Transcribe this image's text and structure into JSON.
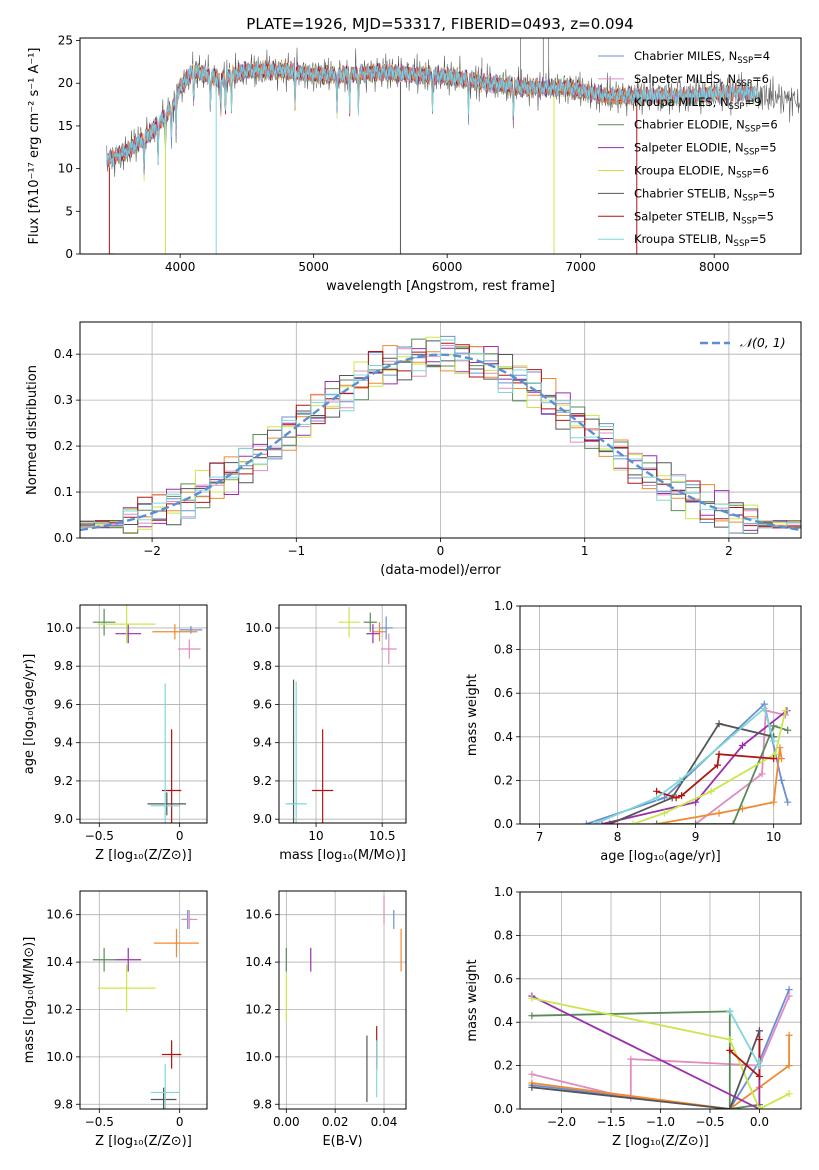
{
  "figure": {
    "title": "PLATE=1926, MJD=53317, FIBERID=0493, z=0.094"
  },
  "model_colors": [
    "#6b8ed6",
    "#e08cc0",
    "#f08a30",
    "#5a8a5a",
    "#9a2fae",
    "#c8e84a",
    "#555555",
    "#b01515",
    "#7fd8d8"
  ],
  "chart_data": [
    {
      "id": "spectrum",
      "type": "line",
      "title": "PLATE=1926, MJD=53317, FIBERID=0493, z=0.094",
      "xlabel": "wavelength [Angstrom, rest frame]",
      "ylabel": "Flux [fλ10⁻¹⁷ erg cm⁻² s⁻¹ A⁻¹]",
      "xlim": [
        3250,
        8650
      ],
      "ylim": [
        0,
        25.3
      ],
      "xticks": [
        4000,
        5000,
        6000,
        7000,
        8000
      ],
      "yticks": [
        0,
        5,
        10,
        15,
        20,
        25
      ],
      "grid": false,
      "legend": "top-right",
      "legend_entries": [
        {
          "pre": "Chabrier MILES, N",
          "sub": "SSP",
          "post": "=4"
        },
        {
          "pre": "Salpeter MILES, N",
          "sub": "SSP",
          "post": "=6"
        },
        {
          "pre": "Kroupa MILES, N",
          "sub": "SSP",
          "post": "=9"
        },
        {
          "pre": "Chabrier ELODIE, N",
          "sub": "SSP",
          "post": "=6"
        },
        {
          "pre": "Salpeter ELODIE, N",
          "sub": "SSP",
          "post": "=5"
        },
        {
          "pre": "Kroupa ELODIE, N",
          "sub": "SSP",
          "post": "=6"
        },
        {
          "pre": "Chabrier STELIB, N",
          "sub": "SSP",
          "post": "=5"
        },
        {
          "pre": "Salpeter STELIB, N",
          "sub": "SSP",
          "post": "=5"
        },
        {
          "pre": "Kroupa STELIB, N",
          "sub": "SSP",
          "post": "=5"
        }
      ],
      "continuum": [
        [
          3450,
          11.0
        ],
        [
          3600,
          12.0
        ],
        [
          3800,
          14.5
        ],
        [
          3950,
          17.5
        ],
        [
          4000,
          19.5
        ],
        [
          4100,
          21.5
        ],
        [
          4300,
          20.5
        ],
        [
          4500,
          21.5
        ],
        [
          4800,
          21.5
        ],
        [
          5000,
          21.0
        ],
        [
          5200,
          21.0
        ],
        [
          5500,
          21.3
        ],
        [
          5800,
          21.0
        ],
        [
          6000,
          20.8
        ],
        [
          6300,
          20.0
        ],
        [
          6600,
          19.5
        ],
        [
          6900,
          19.5
        ],
        [
          7200,
          18.5
        ],
        [
          7500,
          18.5
        ],
        [
          7800,
          18.5
        ],
        [
          8200,
          19.0
        ],
        [
          8600,
          18.0
        ]
      ],
      "drops": [
        [
          3470,
          0
        ],
        [
          3890,
          0
        ],
        [
          4270,
          0
        ],
        [
          5650,
          0
        ],
        [
          6800,
          0
        ],
        [
          7420,
          0
        ]
      ],
      "spikes": [
        [
          5870,
          21.5
        ],
        [
          6050,
          21.5
        ],
        [
          6260,
          23.0
        ],
        [
          6550,
          25.3
        ],
        [
          6720,
          25.3
        ],
        [
          6760,
          25.3
        ]
      ]
    },
    {
      "id": "residuals",
      "type": "step",
      "xlabel": "(data-model)/error",
      "ylabel": "Normed distribution",
      "xlim": [
        -2.5,
        2.5
      ],
      "ylim": [
        0,
        0.47
      ],
      "xticks": [
        -2,
        -1,
        0,
        1,
        2
      ],
      "yticks": [
        0.0,
        0.1,
        0.2,
        0.3,
        0.4
      ],
      "grid": true,
      "legend": "top-right",
      "reference": {
        "name": "𝒩(0, 1)",
        "mean": 0,
        "sigma": 1
      },
      "bin_start": -2.5,
      "bin_width": 0.1,
      "n_bins": 50
    },
    {
      "id": "age-Z",
      "type": "scatter",
      "xlabel": "Z [log₁₀(Z/Z⊙)]",
      "ylabel": "age  [log₁₀(age/yr)]",
      "xlim": [
        -0.62,
        0.17
      ],
      "ylim": [
        8.98,
        10.12
      ],
      "xticks": [
        -0.5,
        0.0
      ],
      "yticks": [
        9.0,
        9.2,
        9.4,
        9.6,
        9.8,
        10.0
      ],
      "grid": true,
      "points": [
        {
          "m": 0,
          "x": 0.07,
          "xe": 0.07,
          "y": 9.99,
          "ye": 0.02
        },
        {
          "m": 1,
          "x": 0.06,
          "xe": 0.07,
          "y": 9.89,
          "ye": 0.05
        },
        {
          "m": 2,
          "x": -0.03,
          "xe": 0.14,
          "y": 9.98,
          "ye": 0.04
        },
        {
          "m": 3,
          "x": -0.47,
          "xe": 0.07,
          "y": 10.03,
          "ye": 0.07
        },
        {
          "m": 4,
          "x": -0.32,
          "xe": 0.08,
          "y": 9.97,
          "ye": 0.05
        },
        {
          "m": 5,
          "x": -0.33,
          "xe": 0.18,
          "y": 10.02,
          "ye": 0.1
        },
        {
          "m": 6,
          "x": -0.08,
          "xe": 0.12,
          "y": 9.08,
          "ye": 0.06
        },
        {
          "m": 7,
          "x": -0.05,
          "xe": 0.06,
          "y": 9.15,
          "ye": 0.32
        },
        {
          "m": 8,
          "x": -0.09,
          "xe": 0.09,
          "y": 9.07,
          "ye": 0.64
        }
      ]
    },
    {
      "id": "age-mass",
      "type": "scatter",
      "xlabel": "mass [log₁₀(M/M⊙)]",
      "ylabel": "",
      "xlim": [
        9.72,
        10.68
      ],
      "ylim": [
        8.98,
        10.12
      ],
      "xticks": [
        10.0,
        10.5
      ],
      "yticks": [
        9.0,
        9.2,
        9.4,
        9.6,
        9.8,
        10.0
      ],
      "grid": true,
      "points": [
        {
          "m": 0,
          "x": 10.53,
          "xe": 0.05,
          "y": 10.0,
          "ye": 0.06
        },
        {
          "m": 1,
          "x": 10.55,
          "xe": 0.06,
          "y": 9.89,
          "ye": 0.08
        },
        {
          "m": 2,
          "x": 10.48,
          "xe": 0.05,
          "y": 9.98,
          "ye": 0.05
        },
        {
          "m": 3,
          "x": 10.41,
          "xe": 0.05,
          "y": 10.03,
          "ye": 0.05
        },
        {
          "m": 4,
          "x": 10.43,
          "xe": 0.05,
          "y": 9.97,
          "ye": 0.05
        },
        {
          "m": 5,
          "x": 10.25,
          "xe": 0.08,
          "y": 10.03,
          "ye": 0.08
        },
        {
          "m": 6,
          "x": 9.83,
          "xe": 0.03,
          "y": 9.08,
          "ye": 0.65
        },
        {
          "m": 7,
          "x": 10.05,
          "xe": 0.08,
          "y": 9.15,
          "ye": 0.32
        },
        {
          "m": 8,
          "x": 9.85,
          "xe": 0.08,
          "y": 9.08,
          "ye": 0.64
        }
      ]
    },
    {
      "id": "weight-age",
      "type": "line",
      "xlabel": "age  [log₁₀(age/yr)]",
      "ylabel": "mass weight",
      "xlim": [
        6.75,
        10.35
      ],
      "ylim": [
        0,
        1
      ],
      "xticks": [
        7,
        8,
        9,
        10
      ],
      "yticks": [
        0.0,
        0.2,
        0.4,
        0.6,
        0.8,
        1.0
      ],
      "grid": true,
      "series": [
        {
          "m": 0,
          "x": [
            7.6,
            8.6,
            9.88,
            10.1,
            10.18
          ],
          "y": [
            0.0,
            0.12,
            0.55,
            0.2,
            0.1
          ]
        },
        {
          "m": 1,
          "x": [
            8.0,
            9.0,
            9.85,
            9.9,
            10.15
          ],
          "y": [
            0.0,
            0.0,
            0.23,
            0.52,
            0.5
          ]
        },
        {
          "m": 2,
          "x": [
            8.5,
            9.3,
            9.6,
            10.0,
            10.08,
            10.1
          ],
          "y": [
            0.0,
            0.05,
            0.07,
            0.1,
            0.35,
            0.3
          ]
        },
        {
          "m": 3,
          "x": [
            8.5,
            9.0,
            9.48,
            10.0,
            10.18
          ],
          "y": [
            0.0,
            0.0,
            0.0,
            0.45,
            0.43
          ]
        },
        {
          "m": 4,
          "x": [
            7.8,
            9.0,
            9.6,
            10.17
          ],
          "y": [
            0.0,
            0.1,
            0.36,
            0.52
          ]
        },
        {
          "m": 5,
          "x": [
            8.2,
            8.6,
            9.2,
            10.02,
            10.15
          ],
          "y": [
            0.0,
            0.05,
            0.15,
            0.32,
            0.52
          ]
        },
        {
          "m": 6,
          "x": [
            7.9,
            8.7,
            9.3,
            10.0
          ],
          "y": [
            0.0,
            0.12,
            0.46,
            0.4
          ]
        },
        {
          "m": 7,
          "x": [
            8.5,
            8.75,
            8.82,
            9.28,
            9.3,
            10.0
          ],
          "y": [
            0.15,
            0.12,
            0.13,
            0.27,
            0.32,
            0.3
          ]
        },
        {
          "m": 8,
          "x": [
            7.7,
            8.5,
            8.8,
            9.88,
            10.0
          ],
          "y": [
            0.0,
            0.12,
            0.2,
            0.53,
            0.38
          ]
        }
      ]
    },
    {
      "id": "mass-Z",
      "type": "scatter",
      "xlabel": "Z [log₁₀(Z/Z⊙)]",
      "ylabel": "mass [log₁₀(M/M⊙)]",
      "xlim": [
        -0.62,
        0.17
      ],
      "ylim": [
        9.78,
        10.7
      ],
      "xticks": [
        -0.5,
        0.0
      ],
      "yticks": [
        9.8,
        10.0,
        10.2,
        10.4,
        10.6
      ],
      "grid": true,
      "points": [
        {
          "m": 0,
          "x": 0.05,
          "xe": 0.03,
          "y": 10.58,
          "ye": 0.04
        },
        {
          "m": 1,
          "x": 0.06,
          "xe": 0.05,
          "y": 10.58,
          "ye": 0.04
        },
        {
          "m": 2,
          "x": -0.02,
          "xe": 0.14,
          "y": 10.48,
          "ye": 0.06
        },
        {
          "m": 3,
          "x": -0.47,
          "xe": 0.07,
          "y": 10.41,
          "ye": 0.05
        },
        {
          "m": 4,
          "x": -0.32,
          "xe": 0.08,
          "y": 10.41,
          "ye": 0.05
        },
        {
          "m": 5,
          "x": -0.33,
          "xe": 0.18,
          "y": 10.29,
          "ye": 0.1
        },
        {
          "m": 6,
          "x": -0.1,
          "xe": 0.08,
          "y": 9.82,
          "ye": 0.05
        },
        {
          "m": 7,
          "x": -0.05,
          "xe": 0.06,
          "y": 10.01,
          "ye": 0.06
        },
        {
          "m": 8,
          "x": -0.09,
          "xe": 0.09,
          "y": 9.85,
          "ye": 0.12
        }
      ]
    },
    {
      "id": "mass-EBV",
      "type": "scatter",
      "xlabel": "E(B-V)",
      "ylabel": "",
      "xlim": [
        -0.003,
        0.049
      ],
      "ylim": [
        9.78,
        10.7
      ],
      "xticks": [
        0.0,
        0.02,
        0.04
      ],
      "yticks": [
        9.8,
        10.0,
        10.2,
        10.4,
        10.6
      ],
      "grid": true,
      "points": [
        {
          "m": 0,
          "x": 0.044,
          "xe": 0,
          "y": 10.58,
          "ye": 0.04
        },
        {
          "m": 1,
          "x": 0.04,
          "xe": 0,
          "y": 10.62,
          "ye": 0.06
        },
        {
          "m": 2,
          "x": 0.047,
          "xe": 0,
          "y": 10.45,
          "ye": 0.09
        },
        {
          "m": 3,
          "x": 0.0,
          "xe": 0,
          "y": 10.41,
          "ye": 0.05
        },
        {
          "m": 4,
          "x": 0.01,
          "xe": 0,
          "y": 10.41,
          "ye": 0.05
        },
        {
          "m": 5,
          "x": 0.0,
          "xe": 0,
          "y": 10.25,
          "ye": 0.1
        },
        {
          "m": 6,
          "x": 0.033,
          "xe": 0,
          "y": 9.95,
          "ye": 0.14
        },
        {
          "m": 7,
          "x": 0.037,
          "xe": 0,
          "y": 10.04,
          "ye": 0.09
        },
        {
          "m": 8,
          "x": 0.037,
          "xe": 0,
          "y": 9.95,
          "ye": 0.12
        }
      ]
    },
    {
      "id": "weight-Z",
      "type": "line",
      "xlabel": "Z [log₁₀(Z/Z⊙)]",
      "ylabel": "mass weight",
      "xlim": [
        -2.42,
        0.42
      ],
      "ylim": [
        0,
        1
      ],
      "xticks": [
        -2.0,
        -1.5,
        -1.0,
        -0.5,
        0.0
      ],
      "yticks": [
        0.0,
        0.2,
        0.4,
        0.6,
        0.8,
        1.0
      ],
      "grid": true,
      "series": [
        {
          "m": 0,
          "x": [
            -2.3,
            -0.3,
            0.0,
            0.3
          ],
          "y": [
            0.11,
            0.0,
            0.22,
            0.55
          ]
        },
        {
          "m": 1,
          "x": [
            -2.3,
            -1.3,
            -1.3,
            0.0,
            0.3
          ],
          "y": [
            0.16,
            0.05,
            0.23,
            0.2,
            0.52
          ]
        },
        {
          "m": 2,
          "x": [
            -2.3,
            -0.3,
            0.0,
            0.3,
            0.3
          ],
          "y": [
            0.12,
            0.0,
            0.1,
            0.2,
            0.34
          ]
        },
        {
          "m": 3,
          "x": [
            -2.3,
            -0.3,
            -0.3,
            0.0
          ],
          "y": [
            0.43,
            0.45,
            0.0,
            0.02
          ]
        },
        {
          "m": 4,
          "x": [
            -2.3,
            0.0,
            0.0
          ],
          "y": [
            0.52,
            0.0,
            0.36
          ]
        },
        {
          "m": 5,
          "x": [
            -2.3,
            -0.3,
            0.0,
            0.3
          ],
          "y": [
            0.51,
            0.32,
            0.0,
            0.07
          ]
        },
        {
          "m": 6,
          "x": [
            -2.3,
            -0.3,
            0.0
          ],
          "y": [
            0.1,
            0.0,
            0.36
          ]
        },
        {
          "m": 7,
          "x": [
            -0.3,
            0.0,
            0.0
          ],
          "y": [
            0.27,
            0.15,
            0.32
          ]
        },
        {
          "m": 8,
          "x": [
            -0.3,
            0.0,
            0.0
          ],
          "y": [
            0.45,
            0.2,
            0.22
          ]
        }
      ]
    }
  ]
}
